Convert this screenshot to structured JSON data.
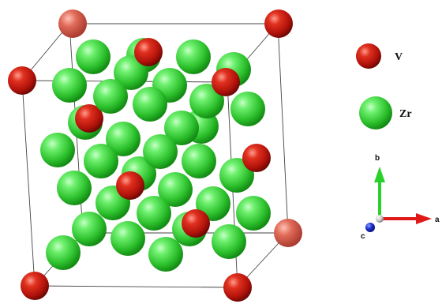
{
  "legend": {
    "items": [
      {
        "symbol": "V",
        "color": "#c8140e"
      },
      {
        "symbol": "Zr",
        "color": "#37cc37"
      }
    ]
  },
  "axes": {
    "a": {
      "label": "a",
      "color": "#e01818"
    },
    "b": {
      "label": "b",
      "color": "#2ad12a"
    },
    "c": {
      "label": "c",
      "color": "#1828c8"
    }
  }
}
